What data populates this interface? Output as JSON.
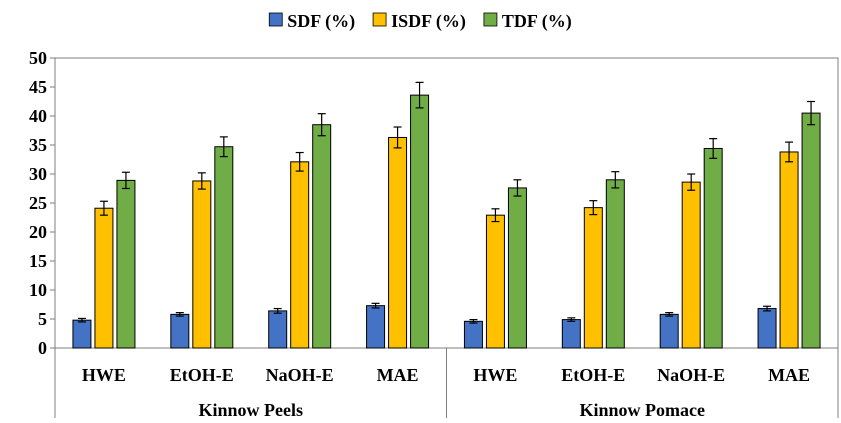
{
  "chart_data": {
    "type": "bar",
    "title": "",
    "xlabel": "",
    "ylabel": "",
    "ylim": [
      0,
      50
    ],
    "yticks": [
      0,
      5,
      10,
      15,
      20,
      25,
      30,
      35,
      40,
      45,
      50
    ],
    "grid": false,
    "legend_position": "top-center",
    "groups": [
      {
        "label": "Kinnow Peels",
        "categories": [
          "HWE",
          "EtOH-E",
          "NaOH-E",
          "MAE"
        ]
      },
      {
        "label": "Kinnow Pomace",
        "categories": [
          "HWE",
          "EtOH-E",
          "NaOH-E",
          "MAE"
        ]
      }
    ],
    "categories": [
      "HWE",
      "EtOH-E",
      "NaOH-E",
      "MAE",
      "HWE",
      "EtOH-E",
      "NaOH-E",
      "MAE"
    ],
    "series": [
      {
        "name": "SDF (%)",
        "color": "#4472C4",
        "values": [
          4.8,
          5.8,
          6.4,
          7.3,
          4.6,
          4.9,
          5.8,
          6.8
        ],
        "errors": [
          0.3,
          0.3,
          0.4,
          0.4,
          0.3,
          0.3,
          0.3,
          0.4
        ]
      },
      {
        "name": "ISDF (%)",
        "color": "#FFC000",
        "values": [
          24.1,
          28.8,
          32.1,
          36.3,
          22.9,
          24.2,
          28.6,
          33.8
        ],
        "errors": [
          1.2,
          1.4,
          1.6,
          1.8,
          1.1,
          1.2,
          1.4,
          1.7
        ]
      },
      {
        "name": "TDF (%)",
        "color": "#70AD47",
        "values": [
          28.9,
          34.7,
          38.5,
          43.6,
          27.6,
          29.0,
          34.4,
          40.5
        ],
        "errors": [
          1.4,
          1.7,
          1.9,
          2.2,
          1.4,
          1.4,
          1.7,
          2.0
        ]
      }
    ]
  }
}
